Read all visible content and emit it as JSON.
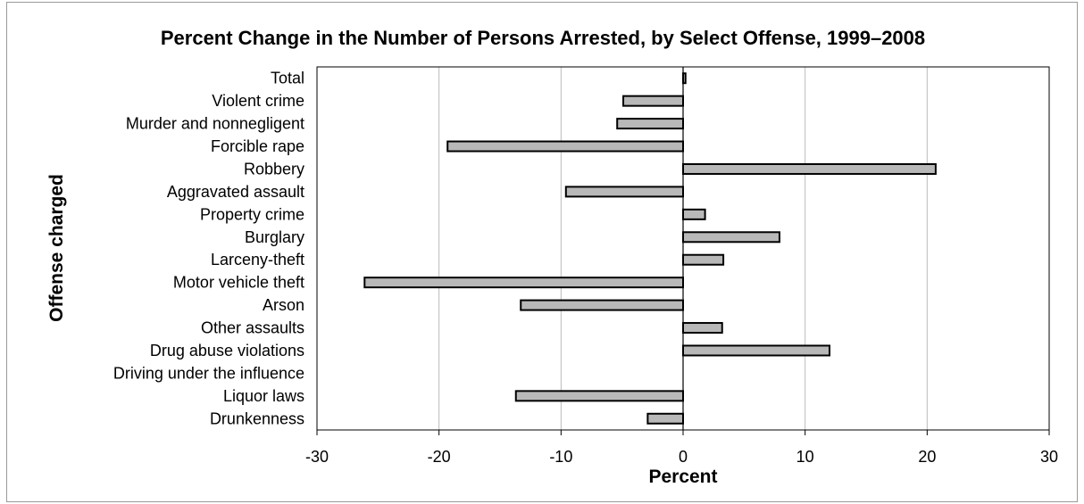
{
  "chart_data": {
    "type": "bar",
    "orientation": "horizontal",
    "title": "Percent Change in the Number of Persons Arrested, by Select Offense, 1999–2008",
    "xlabel": "Percent",
    "ylabel": "Offense charged",
    "xlim": [
      -30,
      30
    ],
    "xticks": [
      "-30",
      "-20",
      "-10",
      "0",
      "10",
      "20",
      "30"
    ],
    "grid": "vertical",
    "legend": "none",
    "bar_color": "#b8b8b8",
    "bar_edge_color": "#000000",
    "categories": [
      "Total",
      "Violent crime",
      "Murder and nonnegligent",
      "Forcible rape",
      "Robbery",
      "Aggravated assault",
      "Property crime",
      "Burglary",
      "Larceny-theft",
      "Motor vehicle theft",
      "Arson",
      "Other assaults",
      "Drug abuse violations",
      "Driving under the influence",
      "Liquor laws",
      "Drunkenness"
    ],
    "values": [
      0.2,
      -4.9,
      -5.4,
      -19.3,
      20.7,
      -9.6,
      1.8,
      7.9,
      3.3,
      -26.1,
      -13.3,
      3.2,
      12.0,
      0,
      -13.7,
      -2.9
    ]
  }
}
